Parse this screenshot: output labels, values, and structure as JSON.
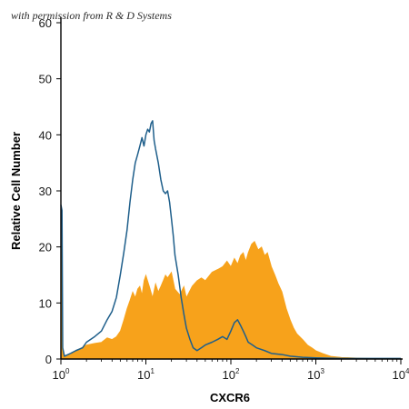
{
  "permission_note": "with permission from R & D Systems",
  "chart_data": {
    "type": "area",
    "xlabel": "CXCR6",
    "ylabel": "Relative Cell Number",
    "x_scale": "log",
    "xlim": [
      1,
      10000
    ],
    "ylim": [
      0,
      60
    ],
    "grid": false,
    "x_ticks": [
      {
        "base": "10",
        "exp": "0",
        "value": 1
      },
      {
        "base": "10",
        "exp": "1",
        "value": 10
      },
      {
        "base": "10",
        "exp": "2",
        "value": 100
      },
      {
        "base": "10",
        "exp": "3",
        "value": 1000
      },
      {
        "base": "10",
        "exp": "4",
        "value": 10000
      }
    ],
    "y_ticks": [
      "0",
      "10",
      "20",
      "30",
      "40",
      "50",
      "60"
    ],
    "series": [
      {
        "style": "filled",
        "color": "#f7a21b",
        "points": [
          [
            1.0,
            27.5
          ],
          [
            1.05,
            2.0
          ],
          [
            1.1,
            0.5
          ],
          [
            1.3,
            0.8
          ],
          [
            1.5,
            1.5
          ],
          [
            2.0,
            2.5
          ],
          [
            2.5,
            2.8
          ],
          [
            3.0,
            3.0
          ],
          [
            3.5,
            3.8
          ],
          [
            4.0,
            3.5
          ],
          [
            4.5,
            4.0
          ],
          [
            5.0,
            5.0
          ],
          [
            5.5,
            7.0
          ],
          [
            6.0,
            9.0
          ],
          [
            6.5,
            10.5
          ],
          [
            7.0,
            12.0
          ],
          [
            7.5,
            11.0
          ],
          [
            8.0,
            12.5
          ],
          [
            8.5,
            13.0
          ],
          [
            9.0,
            11.5
          ],
          [
            9.5,
            14.0
          ],
          [
            10.0,
            15.0
          ],
          [
            11.0,
            13.0
          ],
          [
            12.0,
            11.0
          ],
          [
            13.0,
            13.5
          ],
          [
            14.0,
            12.0
          ],
          [
            15.0,
            13.0
          ],
          [
            16.0,
            14.0
          ],
          [
            17.0,
            15.0
          ],
          [
            18.0,
            14.5
          ],
          [
            20.0,
            15.5
          ],
          [
            22.0,
            12.5
          ],
          [
            25.0,
            11.5
          ],
          [
            28.0,
            13.0
          ],
          [
            30.0,
            11.0
          ],
          [
            35.0,
            13.0
          ],
          [
            40.0,
            14.0
          ],
          [
            45.0,
            14.5
          ],
          [
            50.0,
            14.0
          ],
          [
            60.0,
            15.5
          ],
          [
            70.0,
            16.0
          ],
          [
            80.0,
            16.5
          ],
          [
            90.0,
            17.5
          ],
          [
            100.0,
            16.5
          ],
          [
            110.0,
            18.0
          ],
          [
            120.0,
            17.0
          ],
          [
            130.0,
            18.5
          ],
          [
            140.0,
            19.0
          ],
          [
            150.0,
            17.5
          ],
          [
            160.0,
            19.0
          ],
          [
            175.0,
            20.5
          ],
          [
            190.0,
            21.0
          ],
          [
            210.0,
            19.5
          ],
          [
            230.0,
            20.0
          ],
          [
            250.0,
            18.5
          ],
          [
            270.0,
            19.0
          ],
          [
            300.0,
            16.5
          ],
          [
            330.0,
            15.0
          ],
          [
            360.0,
            13.5
          ],
          [
            400.0,
            12.0
          ],
          [
            450.0,
            9.0
          ],
          [
            500.0,
            7.0
          ],
          [
            550.0,
            5.5
          ],
          [
            600.0,
            4.5
          ],
          [
            700.0,
            3.5
          ],
          [
            800.0,
            2.5
          ],
          [
            900.0,
            2.0
          ],
          [
            1000.0,
            1.5
          ],
          [
            1200.0,
            1.0
          ],
          [
            1500.0,
            0.5
          ],
          [
            2000.0,
            0.3
          ],
          [
            3000.0,
            0.2
          ],
          [
            5000.0,
            0.1
          ],
          [
            10000.0,
            0.1
          ]
        ]
      },
      {
        "style": "outline",
        "color": "#1f5f8b",
        "points": [
          [
            1.0,
            27.5
          ],
          [
            1.03,
            26.5
          ],
          [
            1.05,
            2.0
          ],
          [
            1.1,
            0.5
          ],
          [
            1.3,
            1.0
          ],
          [
            1.5,
            1.5
          ],
          [
            1.8,
            2.0
          ],
          [
            2.0,
            3.0
          ],
          [
            2.5,
            4.0
          ],
          [
            3.0,
            5.0
          ],
          [
            3.5,
            7.0
          ],
          [
            4.0,
            8.5
          ],
          [
            4.5,
            11.0
          ],
          [
            5.0,
            15.0
          ],
          [
            5.5,
            19.0
          ],
          [
            6.0,
            23.0
          ],
          [
            6.5,
            28.0
          ],
          [
            7.0,
            32.0
          ],
          [
            7.5,
            35.0
          ],
          [
            8.0,
            36.5
          ],
          [
            8.5,
            38.0
          ],
          [
            9.0,
            39.5
          ],
          [
            9.5,
            38.0
          ],
          [
            10.0,
            40.0
          ],
          [
            10.5,
            41.0
          ],
          [
            11.0,
            40.5
          ],
          [
            11.5,
            42.0
          ],
          [
            12.0,
            42.5
          ],
          [
            12.5,
            39.0
          ],
          [
            13.0,
            37.5
          ],
          [
            14.0,
            35.0
          ],
          [
            15.0,
            32.0
          ],
          [
            16.0,
            30.0
          ],
          [
            17.0,
            29.5
          ],
          [
            18.0,
            30.0
          ],
          [
            19.0,
            28.0
          ],
          [
            20.0,
            25.0
          ],
          [
            21.0,
            22.0
          ],
          [
            22.0,
            18.5
          ],
          [
            24.0,
            15.0
          ],
          [
            26.0,
            11.0
          ],
          [
            28.0,
            8.0
          ],
          [
            30.0,
            5.5
          ],
          [
            33.0,
            3.5
          ],
          [
            36.0,
            2.0
          ],
          [
            40.0,
            1.5
          ],
          [
            45.0,
            2.0
          ],
          [
            50.0,
            2.5
          ],
          [
            60.0,
            3.0
          ],
          [
            70.0,
            3.5
          ],
          [
            80.0,
            4.0
          ],
          [
            90.0,
            3.5
          ],
          [
            100.0,
            5.0
          ],
          [
            110.0,
            6.5
          ],
          [
            120.0,
            7.0
          ],
          [
            130.0,
            6.0
          ],
          [
            140.0,
            5.0
          ],
          [
            150.0,
            4.0
          ],
          [
            160.0,
            3.0
          ],
          [
            180.0,
            2.5
          ],
          [
            200.0,
            2.0
          ],
          [
            250.0,
            1.5
          ],
          [
            300.0,
            1.0
          ],
          [
            400.0,
            0.8
          ],
          [
            500.0,
            0.5
          ],
          [
            700.0,
            0.3
          ],
          [
            1000.0,
            0.2
          ],
          [
            2000.0,
            0.1
          ],
          [
            5000.0,
            0.1
          ],
          [
            10000.0,
            0.1
          ]
        ]
      }
    ]
  }
}
